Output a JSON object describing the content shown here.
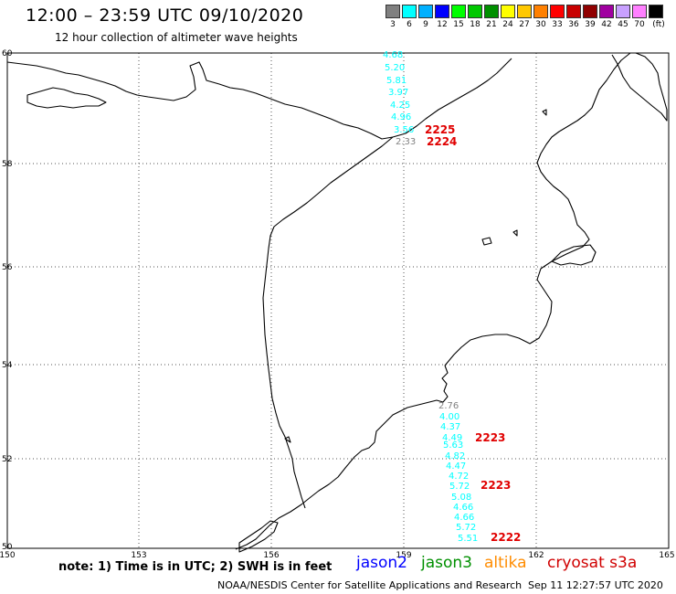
{
  "header": {
    "title": "12:00 – 23:59 UTC 09/10/2020",
    "subtitle": "12 hour collection of altimeter wave heights"
  },
  "legend": {
    "unit": "(ft)",
    "bins": [
      {
        "label": "3",
        "color": "#808080"
      },
      {
        "label": "6",
        "color": "#00ffff"
      },
      {
        "label": "9",
        "color": "#00b0ff"
      },
      {
        "label": "12",
        "color": "#0000ff"
      },
      {
        "label": "15",
        "color": "#00ff00"
      },
      {
        "label": "18",
        "color": "#00c800"
      },
      {
        "label": "21",
        "color": "#009000"
      },
      {
        "label": "24",
        "color": "#ffff00"
      },
      {
        "label": "27",
        "color": "#ffc800"
      },
      {
        "label": "30",
        "color": "#ff8000"
      },
      {
        "label": "33",
        "color": "#ff0000"
      },
      {
        "label": "36",
        "color": "#c80000"
      },
      {
        "label": "39",
        "color": "#900000"
      },
      {
        "label": "42",
        "color": "#a000a0"
      },
      {
        "label": "45",
        "color": "#c8a0ff"
      },
      {
        "label": "70",
        "color": "#ff80ff"
      },
      {
        "label": "",
        "color": "#000000"
      }
    ]
  },
  "map": {
    "lon_range": [
      150,
      165
    ],
    "lat_range": [
      50,
      60
    ],
    "lon_ticks": [
      "150",
      "153",
      "156",
      "159",
      "162",
      "165"
    ],
    "lat_ticks": [
      "50",
      "52",
      "54",
      "56",
      "58",
      "60"
    ],
    "grid": true
  },
  "observations": {
    "north_track": [
      {
        "value": "4.68",
        "color": "#00ffff"
      },
      {
        "value": "5.20",
        "color": "#00ffff"
      },
      {
        "value": "5.81",
        "color": "#00ffff"
      },
      {
        "value": "3.97",
        "color": "#00ffff"
      },
      {
        "value": "4.25",
        "color": "#00ffff"
      },
      {
        "value": "4.96",
        "color": "#00ffff"
      },
      {
        "value": "3.56",
        "color": "#00ffff"
      },
      {
        "value": "2.33",
        "color": "#808080"
      }
    ],
    "south_track": [
      {
        "value": "2.76",
        "color": "#808080"
      },
      {
        "value": "4.00",
        "color": "#00ffff"
      },
      {
        "value": "4.37",
        "color": "#00ffff"
      },
      {
        "value": "4.49",
        "color": "#00ffff"
      },
      {
        "value": "5.63",
        "color": "#00ffff"
      },
      {
        "value": "4.82",
        "color": "#00ffff"
      },
      {
        "value": "4.47",
        "color": "#00ffff"
      },
      {
        "value": "4.72",
        "color": "#00ffff"
      },
      {
        "value": "5.72",
        "color": "#00ffff"
      },
      {
        "value": "5.08",
        "color": "#00ffff"
      },
      {
        "value": "4.66",
        "color": "#00ffff"
      },
      {
        "value": "4.66",
        "color": "#00ffff"
      },
      {
        "value": "5.72",
        "color": "#00ffff"
      },
      {
        "value": "5.51",
        "color": "#00ffff"
      }
    ],
    "time_labels": [
      {
        "text": "2225",
        "color": "#e00000"
      },
      {
        "text": "2224",
        "color": "#e00000"
      },
      {
        "text": "2223",
        "color": "#e00000"
      },
      {
        "text": "2223",
        "color": "#e00000"
      },
      {
        "text": "2222",
        "color": "#e00000"
      }
    ]
  },
  "footer": {
    "note": "note: 1) Time is in UTC; 2) SWH is in feet",
    "satellites": [
      {
        "name": "jason2",
        "color": "#0000ff"
      },
      {
        "name": "jason3",
        "color": "#009000"
      },
      {
        "name": "altika",
        "color": "#ff8c00"
      },
      {
        "name": "cryosat s3a",
        "color": "#d00000"
      }
    ],
    "credit": "NOAA/NESDIS Center for Satellite Applications and Research",
    "timestamp": "Sep 11 12:27:57 UTC 2020"
  }
}
